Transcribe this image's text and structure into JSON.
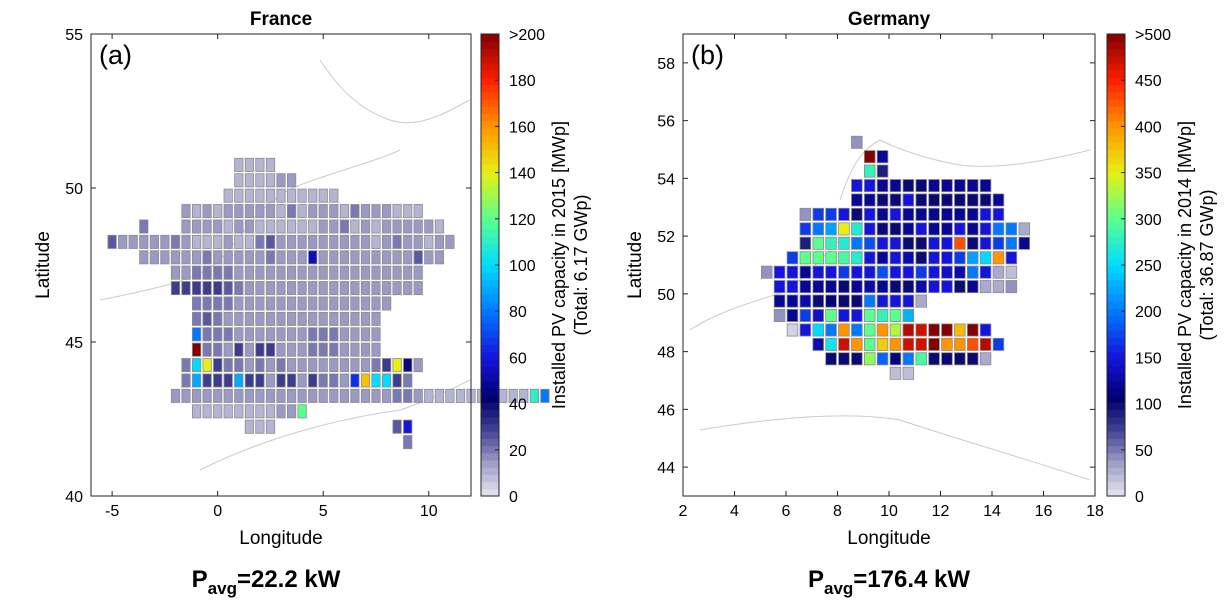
{
  "chart_data": [
    {
      "type": "heatmap",
      "title": "France",
      "panel_label": "(a)",
      "xlabel": "Longitude",
      "ylabel": "Latitude",
      "xlim": [
        -6,
        12
      ],
      "ylim": [
        40,
        55
      ],
      "xticks": [
        -5,
        0,
        5,
        10
      ],
      "yticks": [
        40,
        45,
        50,
        55
      ],
      "colorbar": {
        "label": "Installed PV capacity in 2015 [MWp]",
        "sublabel": "(Total: 6.17 GWp)",
        "min": 0,
        "max": 200,
        "ticks": [
          0,
          20,
          40,
          60,
          80,
          100,
          120,
          140,
          160,
          180,
          200
        ],
        "tick_labels": [
          "0",
          "20",
          "40",
          "60",
          "80",
          "100",
          "120",
          "140",
          "160",
          "180",
          ">200"
        ]
      },
      "cell_size_deg": 0.5,
      "p_avg": {
        "prefix": "P",
        "subscript": "avg",
        "value": "=22.2 kW"
      },
      "grid": {
        "rows": [
          {
            "lat": 50.75,
            "lon0": 1.0,
            "v": [
              10,
              10,
              10,
              10
            ]
          },
          {
            "lat": 50.25,
            "lon0": 1.0,
            "v": [
              10,
              10,
              10,
              10,
              15,
              15
            ]
          },
          {
            "lat": 49.75,
            "lon0": 0.5,
            "v": [
              10,
              10,
              10,
              10,
              10,
              10,
              10,
              10,
              10,
              10,
              10
            ]
          },
          {
            "lat": 49.25,
            "lon0": -1.5,
            "v": [
              15,
              10,
              15,
              10,
              15,
              15,
              15,
              15,
              15,
              10,
              20,
              10,
              15,
              15,
              15,
              10,
              20,
              15,
              15,
              15,
              10,
              10,
              10
            ]
          },
          {
            "lat": 48.75,
            "lon0": -1.5,
            "v": [
              15,
              15,
              15,
              15,
              10,
              15,
              15,
              10,
              10,
              10,
              10,
              10,
              10,
              15,
              15,
              20,
              10,
              15,
              10,
              15,
              15,
              15,
              15,
              15,
              10
            ]
          },
          {
            "lat": 48.25,
            "lon0": -5.0,
            "v": [
              25,
              15,
              15,
              15,
              15,
              15,
              20,
              15,
              10,
              10,
              10,
              15,
              10,
              10,
              20,
              25,
              15,
              15,
              15,
              15,
              15,
              15,
              15,
              15,
              15,
              10,
              15,
              20,
              15,
              15,
              10,
              15,
              15
            ]
          },
          {
            "lat": 47.75,
            "lon0": -3.5,
            "v": [
              15,
              15,
              15,
              15,
              15,
              15,
              20,
              15,
              15,
              15,
              15,
              15,
              20,
              15,
              15,
              15,
              55,
              15,
              15,
              15,
              15,
              15,
              15,
              15,
              15,
              15,
              25,
              15,
              15
            ]
          },
          {
            "lat": 47.25,
            "lon0": -2.0,
            "v": [
              15,
              15,
              20,
              20,
              20,
              20,
              15,
              15,
              15,
              15,
              15,
              15,
              15,
              15,
              15,
              15,
              15,
              15,
              15,
              15,
              15,
              15,
              15,
              15
            ]
          },
          {
            "lat": 46.75,
            "lon0": -2.0,
            "v": [
              30,
              30,
              30,
              30,
              30,
              25,
              20,
              15,
              15,
              15,
              15,
              15,
              15,
              15,
              15,
              15,
              15,
              15,
              15,
              15,
              15,
              15,
              15,
              15
            ]
          },
          {
            "lat": 46.25,
            "lon0": -1.0,
            "v": [
              20,
              20,
              20,
              20,
              15,
              15,
              15,
              15,
              15,
              15,
              15,
              15,
              15,
              15,
              15,
              15,
              15,
              15,
              15
            ]
          },
          {
            "lat": 45.75,
            "lon0": -1.0,
            "v": [
              20,
              25,
              20,
              15,
              15,
              15,
              15,
              15,
              15,
              15,
              15,
              15,
              15,
              15,
              15,
              15,
              15,
              15
            ]
          },
          {
            "lat": 45.25,
            "lon0": -1.0,
            "v": [
              80,
              20,
              20,
              20,
              15,
              15,
              15,
              15,
              15,
              15,
              15,
              20,
              20,
              20,
              15,
              15,
              15,
              15
            ]
          },
          {
            "lat": 44.75,
            "lon0": -1.0,
            "v": [
              200,
              20,
              20,
              15,
              30,
              15,
              30,
              30,
              15,
              15,
              15,
              20,
              20,
              20,
              15,
              15,
              15,
              15
            ]
          },
          {
            "lat": 44.25,
            "lon0": -1.5,
            "v": [
              20,
              100,
              140,
              30,
              20,
              20,
              15,
              20,
              15,
              20,
              15,
              15,
              15,
              15,
              15,
              15,
              15,
              15,
              20,
              30,
              140,
              40,
              15
            ]
          },
          {
            "lat": 43.75,
            "lon0": -1.5,
            "v": [
              20,
              90,
              30,
              30,
              30,
              90,
              30,
              30,
              15,
              30,
              30,
              15,
              30,
              20,
              20,
              15,
              65,
              150,
              100,
              100,
              30,
              20
            ]
          },
          {
            "lat": 43.25,
            "lon0": -2.0,
            "v": [
              15,
              15,
              15,
              15,
              15,
              15,
              15,
              15,
              15,
              15,
              15,
              15,
              15,
              15,
              15,
              15,
              15,
              15,
              15,
              15,
              15,
              20,
              20,
              15,
              10,
              10,
              10,
              10,
              10,
              10,
              10,
              10,
              10,
              10,
              110,
              80
            ]
          },
          {
            "lat": 42.75,
            "lon0": -1.0,
            "v": [
              10,
              10,
              10,
              10,
              10,
              10,
              10,
              10,
              15,
              15,
              120
            ]
          },
          {
            "lat": 42.25,
            "lon0": 1.5,
            "v": [
              10,
              10,
              10
            ]
          }
        ],
        "extra_cells": [
          {
            "lat": 48.75,
            "lon0": -3.5,
            "v": [
              20
            ]
          },
          {
            "lat": 42.25,
            "lon0": 8.5,
            "v": [
              25,
              60
            ]
          },
          {
            "lat": 41.75,
            "lon0": 9.0,
            "v": [
              20
            ]
          }
        ]
      }
    },
    {
      "type": "heatmap",
      "title": "Germany",
      "panel_label": "(b)",
      "xlabel": "Longitude",
      "ylabel": "Latitude",
      "xlim": [
        2,
        18
      ],
      "ylim": [
        43,
        59
      ],
      "xticks": [
        2,
        4,
        6,
        8,
        10,
        12,
        14,
        16,
        18
      ],
      "yticks": [
        44,
        46,
        48,
        50,
        52,
        54,
        56,
        58
      ],
      "colorbar": {
        "label": "Installed PV capacity in 2014 [MWp]",
        "sublabel": "(Total: 36.87 GWp)",
        "min": 0,
        "max": 500,
        "ticks": [
          0,
          50,
          100,
          150,
          200,
          250,
          300,
          350,
          400,
          450,
          500
        ],
        "tick_labels": [
          "0",
          "50",
          "100",
          "150",
          "200",
          "250",
          "300",
          "350",
          "400",
          "450",
          ">500"
        ]
      },
      "cell_size_deg": 0.5,
      "p_avg": {
        "prefix": "P",
        "subscript": "avg",
        "value": "=176.4 kW"
      },
      "grid": {
        "rows": [
          {
            "lat": 55.25,
            "lon0": 8.75,
            "v": [
              40
            ]
          },
          {
            "lat": 54.75,
            "lon0": 9.25,
            "v": [
              500,
              120
            ]
          },
          {
            "lat": 54.25,
            "lon0": 9.25,
            "v": [
              280,
              90
            ]
          },
          {
            "lat": 53.75,
            "lon0": 8.75,
            "v": [
              150,
              150,
              120,
              120,
              100,
              100,
              120,
              120,
              120,
              120,
              120
            ]
          },
          {
            "lat": 53.25,
            "lon0": 8.75,
            "v": [
              120,
              120,
              100,
              100,
              150,
              100,
              100,
              100,
              100,
              100,
              100,
              120
            ]
          },
          {
            "lat": 52.75,
            "lon0": 6.75,
            "v": [
              40,
              170,
              170,
              150,
              100,
              150,
              120,
              150,
              120,
              120,
              120,
              120,
              120,
              120,
              150,
              150
            ]
          },
          {
            "lat": 52.25,
            "lon0": 6.75,
            "v": [
              170,
              200,
              220,
              350,
              270,
              150,
              100,
              100,
              120,
              150,
              120,
              120,
              150,
              120,
              150,
              200,
              200,
              30
            ]
          },
          {
            "lat": 51.75,
            "lon0": 6.75,
            "v": [
              90,
              300,
              280,
              270,
              200,
              180,
              150,
              150,
              100,
              100,
              150,
              150,
              430,
              100,
              150,
              170,
              200,
              120
            ]
          },
          {
            "lat": 51.25,
            "lon0": 6.25,
            "v": [
              170,
              300,
              300,
              300,
              290,
              270,
              150,
              120,
              150,
              130,
              100,
              150,
              150,
              170,
              220,
              250,
              400,
              150
            ]
          },
          {
            "lat": 50.75,
            "lon0": 5.25,
            "v": [
              40,
              150,
              150,
              120,
              150,
              150,
              170,
              150,
              150,
              180,
              150,
              150,
              170,
              150,
              140,
              130,
              200,
              150,
              30,
              20
            ]
          },
          {
            "lat": 50.25,
            "lon0": 5.75,
            "v": [
              150,
              150,
              120,
              120,
              120,
              100,
              120,
              130,
              120,
              100,
              100,
              130,
              150,
              150,
              100,
              120,
              30,
              30,
              40
            ]
          },
          {
            "lat": 49.75,
            "lon0": 5.75,
            "v": [
              120,
              120,
              130,
              100,
              110,
              100,
              100,
              200,
              150,
              150,
              150,
              30
            ]
          },
          {
            "lat": 49.25,
            "lon0": 5.75,
            "v": [
              40,
              120,
              170,
              140,
              300,
              150,
              150,
              300,
              280,
              300,
              230
            ]
          },
          {
            "lat": 48.75,
            "lon0": 6.25,
            "v": [
              10,
              150,
              250,
              200,
              400,
              200,
              300,
              400,
              330,
              480,
              470,
              500,
              520,
              380,
              500,
              150
            ]
          },
          {
            "lat": 48.25,
            "lon0": 7.25,
            "v": [
              130,
              260,
              470,
              400,
              300,
              370,
              400,
              470,
              470,
              500,
              400,
              400,
              430,
              480,
              170
            ]
          },
          {
            "lat": 47.75,
            "lon0": 7.75,
            "v": [
              100,
              100,
              100,
              320,
              190,
              110,
              200,
              290,
              100,
              100,
              100,
              100,
              30
            ]
          },
          {
            "lat": 47.25,
            "lon0": 10.25,
            "v": [
              20,
              20
            ]
          }
        ],
        "extra_cells": []
      }
    }
  ]
}
